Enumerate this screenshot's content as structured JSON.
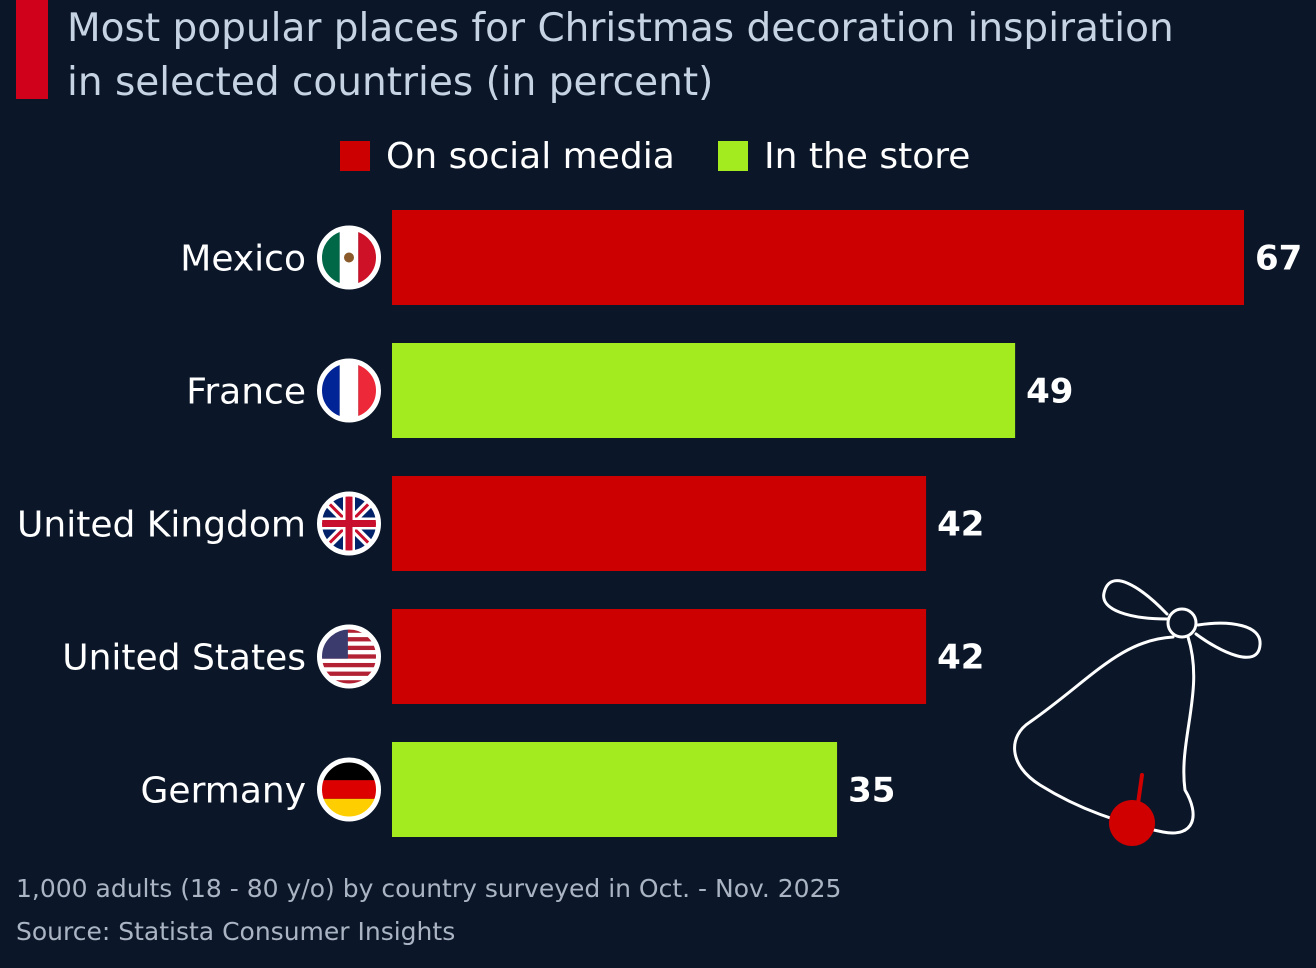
{
  "header": {
    "title_line1": "Most popular places for Christmas decoration inspiration",
    "title_line2": "in selected countries (in percent)"
  },
  "colors": {
    "social": "#cc0000",
    "store": "#a3eb1e",
    "background": "#0b1729",
    "accent": "#d0021b"
  },
  "legend": [
    {
      "label": "On social media",
      "color": "#cc0000"
    },
    {
      "label": "In the store",
      "color": "#a3eb1e"
    }
  ],
  "chart_data": {
    "type": "bar",
    "orientation": "horizontal",
    "title": "Most popular places for Christmas decoration inspiration in selected countries (in percent)",
    "categories": [
      "Mexico",
      "France",
      "United Kingdom",
      "United States",
      "Germany"
    ],
    "values": [
      67,
      49,
      42,
      42,
      35
    ],
    "bar_groups": [
      "On social media",
      "In the store",
      "On social media",
      "On social media",
      "In the store"
    ],
    "flags": [
      "mexico-flag-icon",
      "france-flag-icon",
      "uk-flag-icon",
      "us-flag-icon",
      "germany-flag-icon"
    ],
    "xlim": [
      0,
      67
    ],
    "grid": false,
    "legend_position": "top-center"
  },
  "footer": {
    "note": "1,000 adults (18 - 80 y/o) by country surveyed in Oct. - Nov. 2025",
    "source": "Source: Statista Consumer Insights"
  },
  "decoration": {
    "icon": "christmas-bell-icon"
  }
}
